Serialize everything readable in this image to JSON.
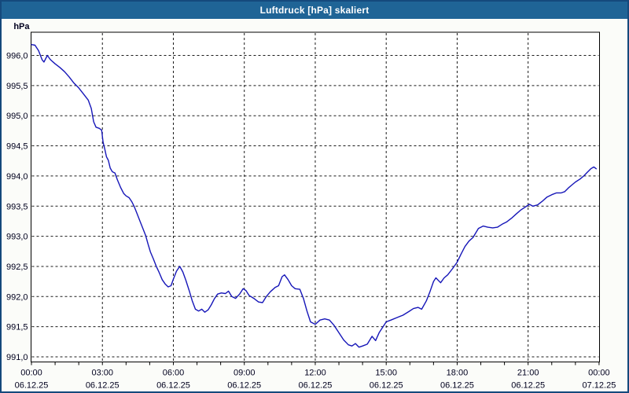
{
  "window": {
    "title": "Luftdruck [hPa] skaliert"
  },
  "colors": {
    "titlebar_bg": "#1f6496",
    "titlebar_text": "#ffffff",
    "window_border": "#15497c",
    "margin_bg": "#fbfcf9",
    "plot_bg": "#ffffff",
    "plot_border": "#000000",
    "gridline": "#1a1a1a",
    "tick": "#000000",
    "label_text": "#00001e",
    "line_color": "#1616b8"
  },
  "chart_data": {
    "type": "line",
    "title": "Luftdruck [hPa] skaliert",
    "xlabel": "",
    "ylabel": "hPa",
    "ylim": [
      991.0,
      996.25
    ],
    "xlim_hours": [
      0,
      24
    ],
    "grid": true,
    "grid_style": "dashed",
    "legend_position": "none",
    "y_ticks": [
      {
        "value": 996.0,
        "label": "996,0"
      },
      {
        "value": 995.5,
        "label": "995,5"
      },
      {
        "value": 995.0,
        "label": "995,0"
      },
      {
        "value": 994.5,
        "label": "994,5"
      },
      {
        "value": 994.0,
        "label": "994,0"
      },
      {
        "value": 993.5,
        "label": "993,5"
      },
      {
        "value": 993.0,
        "label": "993,0"
      },
      {
        "value": 992.5,
        "label": "992,5"
      },
      {
        "value": 992.0,
        "label": "992,0"
      },
      {
        "value": 991.5,
        "label": "991,5"
      },
      {
        "value": 991.0,
        "label": "991,0"
      }
    ],
    "x_ticks": [
      {
        "hour": 0,
        "time": "00:00",
        "date": "06.12.25"
      },
      {
        "hour": 3,
        "time": "03:00",
        "date": "06.12.25"
      },
      {
        "hour": 6,
        "time": "06:00",
        "date": "06.12.25"
      },
      {
        "hour": 9,
        "time": "09:00",
        "date": "06.12.25"
      },
      {
        "hour": 12,
        "time": "12:00",
        "date": "06.12.25"
      },
      {
        "hour": 15,
        "time": "15:00",
        "date": "06.12.25"
      },
      {
        "hour": 18,
        "time": "18:00",
        "date": "06.12.25"
      },
      {
        "hour": 21,
        "time": "21:00",
        "date": "06.12.25"
      },
      {
        "hour": 24,
        "time": "00:00",
        "date": "07.12.25"
      }
    ],
    "minor_tick_every_hours": 1,
    "series": [
      {
        "name": "Luftdruck",
        "unit": "hPa",
        "points": [
          [
            0.0,
            996.18
          ],
          [
            0.15,
            996.17
          ],
          [
            0.3,
            996.08
          ],
          [
            0.45,
            995.93
          ],
          [
            0.53,
            995.89
          ],
          [
            0.67,
            996.0
          ],
          [
            0.8,
            995.93
          ],
          [
            1.0,
            995.86
          ],
          [
            1.2,
            995.8
          ],
          [
            1.4,
            995.73
          ],
          [
            1.6,
            995.64
          ],
          [
            1.8,
            995.54
          ],
          [
            2.0,
            995.46
          ],
          [
            2.2,
            995.36
          ],
          [
            2.4,
            995.26
          ],
          [
            2.53,
            995.12
          ],
          [
            2.63,
            994.9
          ],
          [
            2.73,
            994.81
          ],
          [
            2.87,
            994.79
          ],
          [
            2.97,
            994.76
          ],
          [
            3.03,
            994.56
          ],
          [
            3.1,
            994.45
          ],
          [
            3.17,
            994.32
          ],
          [
            3.25,
            994.26
          ],
          [
            3.33,
            994.13
          ],
          [
            3.42,
            994.07
          ],
          [
            3.53,
            994.05
          ],
          [
            3.63,
            993.94
          ],
          [
            3.77,
            993.81
          ],
          [
            3.9,
            993.71
          ],
          [
            4.0,
            993.67
          ],
          [
            4.13,
            993.64
          ],
          [
            4.25,
            993.57
          ],
          [
            4.35,
            993.49
          ],
          [
            4.45,
            993.39
          ],
          [
            4.58,
            993.26
          ],
          [
            4.7,
            993.14
          ],
          [
            4.83,
            993.01
          ],
          [
            4.93,
            992.87
          ],
          [
            5.03,
            992.74
          ],
          [
            5.15,
            992.63
          ],
          [
            5.28,
            992.5
          ],
          [
            5.4,
            992.4
          ],
          [
            5.53,
            992.28
          ],
          [
            5.65,
            992.21
          ],
          [
            5.78,
            992.16
          ],
          [
            5.9,
            992.18
          ],
          [
            6.0,
            992.29
          ],
          [
            6.13,
            992.42
          ],
          [
            6.27,
            992.5
          ],
          [
            6.4,
            992.41
          ],
          [
            6.53,
            992.27
          ],
          [
            6.67,
            992.1
          ],
          [
            6.8,
            991.93
          ],
          [
            6.93,
            991.79
          ],
          [
            7.07,
            991.76
          ],
          [
            7.2,
            991.79
          ],
          [
            7.33,
            991.74
          ],
          [
            7.47,
            991.78
          ],
          [
            7.6,
            991.86
          ],
          [
            7.73,
            991.96
          ],
          [
            7.87,
            992.04
          ],
          [
            8.03,
            992.06
          ],
          [
            8.2,
            992.05
          ],
          [
            8.33,
            992.09
          ],
          [
            8.47,
            992.0
          ],
          [
            8.63,
            991.97
          ],
          [
            8.8,
            992.04
          ],
          [
            8.95,
            992.13
          ],
          [
            9.07,
            992.1
          ],
          [
            9.2,
            992.02
          ],
          [
            9.4,
            991.97
          ],
          [
            9.6,
            991.91
          ],
          [
            9.77,
            991.9
          ],
          [
            9.93,
            992.0
          ],
          [
            10.1,
            992.08
          ],
          [
            10.3,
            992.15
          ],
          [
            10.45,
            992.18
          ],
          [
            10.6,
            992.33
          ],
          [
            10.7,
            992.36
          ],
          [
            10.85,
            992.28
          ],
          [
            11.0,
            992.18
          ],
          [
            11.15,
            992.13
          ],
          [
            11.35,
            992.12
          ],
          [
            11.5,
            991.97
          ],
          [
            11.65,
            991.76
          ],
          [
            11.8,
            991.58
          ],
          [
            12.0,
            991.54
          ],
          [
            12.2,
            991.61
          ],
          [
            12.4,
            991.63
          ],
          [
            12.6,
            991.61
          ],
          [
            12.8,
            991.52
          ],
          [
            13.0,
            991.4
          ],
          [
            13.2,
            991.28
          ],
          [
            13.4,
            991.2
          ],
          [
            13.55,
            991.18
          ],
          [
            13.7,
            991.22
          ],
          [
            13.85,
            991.16
          ],
          [
            14.0,
            991.18
          ],
          [
            14.2,
            991.21
          ],
          [
            14.4,
            991.34
          ],
          [
            14.55,
            991.27
          ],
          [
            14.7,
            991.4
          ],
          [
            14.9,
            991.52
          ],
          [
            15.0,
            991.58
          ],
          [
            15.2,
            991.61
          ],
          [
            15.45,
            991.65
          ],
          [
            15.7,
            991.69
          ],
          [
            15.95,
            991.75
          ],
          [
            16.15,
            991.8
          ],
          [
            16.35,
            991.82
          ],
          [
            16.5,
            991.79
          ],
          [
            16.7,
            991.93
          ],
          [
            16.85,
            992.08
          ],
          [
            17.0,
            992.25
          ],
          [
            17.1,
            992.31
          ],
          [
            17.3,
            992.23
          ],
          [
            17.45,
            992.31
          ],
          [
            17.6,
            992.36
          ],
          [
            17.8,
            992.46
          ],
          [
            18.0,
            992.57
          ],
          [
            18.17,
            992.71
          ],
          [
            18.33,
            992.83
          ],
          [
            18.5,
            992.92
          ],
          [
            18.67,
            992.98
          ],
          [
            18.9,
            993.13
          ],
          [
            19.1,
            993.17
          ],
          [
            19.3,
            993.15
          ],
          [
            19.5,
            993.14
          ],
          [
            19.7,
            993.15
          ],
          [
            19.9,
            993.2
          ],
          [
            20.1,
            993.24
          ],
          [
            20.3,
            993.3
          ],
          [
            20.5,
            993.37
          ],
          [
            20.7,
            993.44
          ],
          [
            20.9,
            993.49
          ],
          [
            21.05,
            993.53
          ],
          [
            21.2,
            993.5
          ],
          [
            21.4,
            993.52
          ],
          [
            21.6,
            993.58
          ],
          [
            21.8,
            993.65
          ],
          [
            22.0,
            993.69
          ],
          [
            22.2,
            993.72
          ],
          [
            22.4,
            993.72
          ],
          [
            22.55,
            993.74
          ],
          [
            22.7,
            993.8
          ],
          [
            22.85,
            993.85
          ],
          [
            23.0,
            993.9
          ],
          [
            23.2,
            993.95
          ],
          [
            23.35,
            994.0
          ],
          [
            23.5,
            994.06
          ],
          [
            23.65,
            994.12
          ],
          [
            23.78,
            994.15
          ],
          [
            23.88,
            994.12
          ]
        ]
      }
    ]
  }
}
